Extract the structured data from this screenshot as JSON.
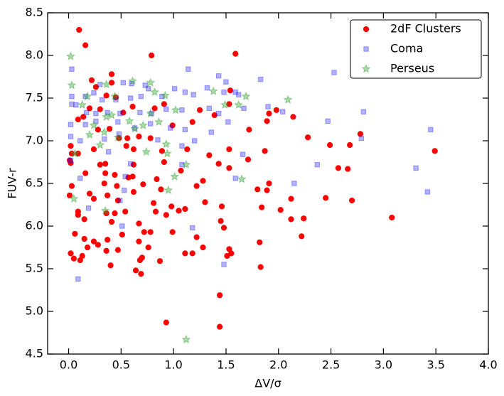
{
  "chart_data": {
    "type": "scatter",
    "x_label": "ΔV/σ",
    "y_label": "FUV-r",
    "xlim": [
      -0.2,
      4.0
    ],
    "xticks": [
      {
        "value": 0,
        "label": "0.0"
      },
      0.5,
      {
        "value": 1,
        "label": "1.0"
      },
      1.5,
      {
        "value": 2,
        "label": "2.0"
      },
      2.5,
      {
        "value": 3,
        "label": "3.0"
      },
      3.5,
      {
        "value": 4,
        "label": "4.0"
      }
    ],
    "ylim": [
      4.5,
      8.5
    ],
    "yticks": [
      4.5,
      {
        "value": 5,
        "label": "5.0"
      },
      5.5,
      {
        "value": 6,
        "label": "6.0"
      },
      6.5,
      {
        "value": 7,
        "label": "7.0"
      },
      7.5,
      {
        "value": 8,
        "label": "8.0"
      },
      8.5
    ],
    "legend": "upper right",
    "series": [
      {
        "name": "2dF Clusters",
        "color": "#ff0000",
        "marker": "circle",
        "x": [
          0.1,
          0.16,
          0.79,
          1.59,
          0.22,
          0.26,
          0.41,
          0.41,
          0.36,
          0.45,
          0.2,
          0.3,
          0.52,
          0.61,
          0.82,
          0.91,
          1.54,
          1.25,
          1.39,
          1.53,
          0.09,
          0.14,
          0.28,
          0.39,
          0.48,
          0.56,
          0.67,
          0.78,
          0.99,
          1.18,
          1.72,
          1.89,
          1.98,
          2.14,
          1.91,
          0.02,
          0.03,
          0.09,
          0.24,
          0.55,
          0.62,
          0.89,
          1.13,
          1.34,
          1.53,
          1.87,
          2.28,
          2.49,
          2.78,
          2.68,
          3.49,
          0.01,
          0.02,
          0.3,
          0.35,
          0.62,
          0.91,
          1.43,
          1.71,
          1.53,
          2.57,
          2.66,
          0.35,
          0.44,
          0.16,
          0.57,
          0.61,
          0.84,
          1.07,
          1.28,
          1.91,
          0.03,
          0.34,
          0.46,
          0.71,
          0.88,
          1.22,
          1.8,
          1.89,
          0.01,
          0.2,
          0.24,
          0.37,
          0.47,
          0.62,
          0.81,
          2.12,
          2.45,
          2.7,
          0.98,
          1.11,
          1.3,
          1.46,
          1.84,
          2.02,
          0.09,
          0.09,
          0.36,
          0.44,
          0.54,
          0.83,
          0.93,
          1.05,
          0.15,
          0.41,
          0.67,
          1.45,
          2.12,
          2.24,
          3.08,
          1.48,
          0.06,
          0.72,
          0.78,
          0.99,
          2.22,
          0.15,
          0.37,
          0.51,
          1.22,
          0.24,
          0.28,
          0.67,
          1.82,
          0.02,
          0.18,
          0.36,
          0.47,
          0.76,
          1.28,
          1.53,
          0.13,
          1.11,
          1.18,
          1.51,
          1.55,
          0.05,
          0.11,
          0.68,
          0.7,
          0.87,
          0.4,
          1.83,
          0.64,
          0.69,
          1.44,
          0.93,
          1.44
        ],
        "values": [
          8.3,
          8.12,
          8.0,
          8.02,
          7.71,
          7.63,
          7.78,
          7.68,
          7.53,
          7.51,
          7.38,
          7.37,
          7.33,
          7.4,
          7.38,
          7.43,
          7.59,
          7.36,
          7.3,
          7.43,
          7.25,
          7.28,
          7.13,
          7.14,
          7.03,
          7.03,
          7.05,
          7.03,
          7.18,
          7.22,
          7.13,
          7.23,
          7.36,
          7.28,
          7.32,
          6.94,
          6.85,
          6.85,
          6.9,
          6.94,
          6.9,
          6.88,
          6.9,
          6.83,
          6.9,
          6.88,
          7.04,
          6.95,
          7.08,
          6.95,
          6.88,
          6.77,
          6.74,
          6.72,
          6.73,
          6.72,
          6.75,
          6.73,
          6.78,
          6.68,
          6.68,
          6.67,
          6.62,
          6.6,
          6.62,
          6.57,
          6.58,
          6.55,
          6.65,
          6.53,
          6.5,
          6.47,
          6.5,
          6.47,
          6.49,
          6.43,
          6.47,
          6.43,
          6.42,
          6.36,
          6.38,
          6.32,
          6.36,
          6.3,
          6.4,
          6.27,
          6.32,
          6.33,
          6.3,
          6.23,
          6.2,
          6.28,
          6.23,
          6.22,
          6.19,
          6.17,
          6.13,
          6.15,
          6.15,
          6.17,
          6.17,
          6.13,
          6.18,
          6.08,
          6.05,
          6.03,
          6.06,
          6.08,
          6.09,
          6.1,
          5.98,
          5.91,
          5.93,
          5.93,
          5.93,
          5.88,
          5.85,
          5.84,
          5.9,
          5.87,
          5.82,
          5.78,
          5.82,
          5.81,
          5.68,
          5.75,
          5.71,
          5.72,
          5.75,
          5.75,
          5.73,
          5.65,
          5.68,
          5.68,
          5.65,
          5.68,
          5.62,
          5.6,
          5.6,
          5.63,
          5.59,
          5.54,
          5.52,
          5.48,
          5.44,
          5.19,
          4.87,
          4.82
        ]
      },
      {
        "name": "Coma",
        "color": "#0000ff",
        "marker": "square",
        "x": [
          0.03,
          0.6,
          1.14,
          1.43,
          1.5,
          1.83,
          2.53,
          0.3,
          0.52,
          0.73,
          0.03,
          0.03,
          0.16,
          0.32,
          0.24,
          0.45,
          0.59,
          0.69,
          0.76,
          0.89,
          1.01,
          1.11,
          1.19,
          1.32,
          1.48,
          1.59,
          1.62,
          0.07,
          0.17,
          0.26,
          0.37,
          0.49,
          0.68,
          0.79,
          0.93,
          1.08,
          1.34,
          1.43,
          1.67,
          1.9,
          2.04,
          2.81,
          0.02,
          0.16,
          0.26,
          0.47,
          0.63,
          0.78,
          0.97,
          1.11,
          1.36,
          1.52,
          2.47,
          0.02,
          0.11,
          0.34,
          0.48,
          0.85,
          1.08,
          1.2,
          1.66,
          2.79,
          3.45,
          0.02,
          0.38,
          0.59,
          1.08,
          2.37,
          0.11,
          0.54,
          1.59,
          2.15,
          3.31,
          0.53,
          3.42,
          0.19,
          0.49,
          0.51,
          1.18,
          1.48,
          0.09
        ],
        "values": [
          7.84,
          7.67,
          7.84,
          7.76,
          7.69,
          7.72,
          7.8,
          7.66,
          7.68,
          7.65,
          7.43,
          7.52,
          7.52,
          7.48,
          7.56,
          7.48,
          7.5,
          7.52,
          7.61,
          7.52,
          7.61,
          7.57,
          7.54,
          7.62,
          7.57,
          7.57,
          7.54,
          7.42,
          7.33,
          7.32,
          7.33,
          7.32,
          7.33,
          7.32,
          7.37,
          7.36,
          7.38,
          7.32,
          7.38,
          7.4,
          7.34,
          7.34,
          7.19,
          7.19,
          7.23,
          7.22,
          7.15,
          7.2,
          7.15,
          7.13,
          7.1,
          7.22,
          7.23,
          7.05,
          7.0,
          7.02,
          7.08,
          7.01,
          6.94,
          7.0,
          6.84,
          7.03,
          7.13,
          6.77,
          6.87,
          6.73,
          6.72,
          6.72,
          6.56,
          6.58,
          6.56,
          6.5,
          6.68,
          6.42,
          6.4,
          6.21,
          6.3,
          6.0,
          5.98,
          5.55,
          5.38
        ]
      },
      {
        "name": "Perseus",
        "color": "#2ca02c",
        "marker": "star",
        "x": [
          0.02,
          0.03,
          0.61,
          0.78,
          0.82,
          0.36,
          0.18,
          0.44,
          0.92,
          1.38,
          1.69,
          1.49,
          1.62,
          2.09,
          0.13,
          0.41,
          0.36,
          0.78,
          1.02,
          0.58,
          0.63,
          0.71,
          0.86,
          0.24,
          0.34,
          0.47,
          0.2,
          0.3,
          0.93,
          0.74,
          0.94,
          0.06,
          1.12,
          1.01,
          1.65,
          0.95,
          0.05,
          0.35,
          1.12
        ],
        "values": [
          7.99,
          7.65,
          7.7,
          7.68,
          7.57,
          7.66,
          7.52,
          7.52,
          7.53,
          7.58,
          7.52,
          7.42,
          7.42,
          7.48,
          7.42,
          7.3,
          7.28,
          7.32,
          7.36,
          7.23,
          7.14,
          7.18,
          7.22,
          7.18,
          7.1,
          7.04,
          7.07,
          6.95,
          6.96,
          6.87,
          6.85,
          6.85,
          6.72,
          6.58,
          6.55,
          6.42,
          6.32,
          6.18,
          4.67
        ]
      }
    ]
  }
}
